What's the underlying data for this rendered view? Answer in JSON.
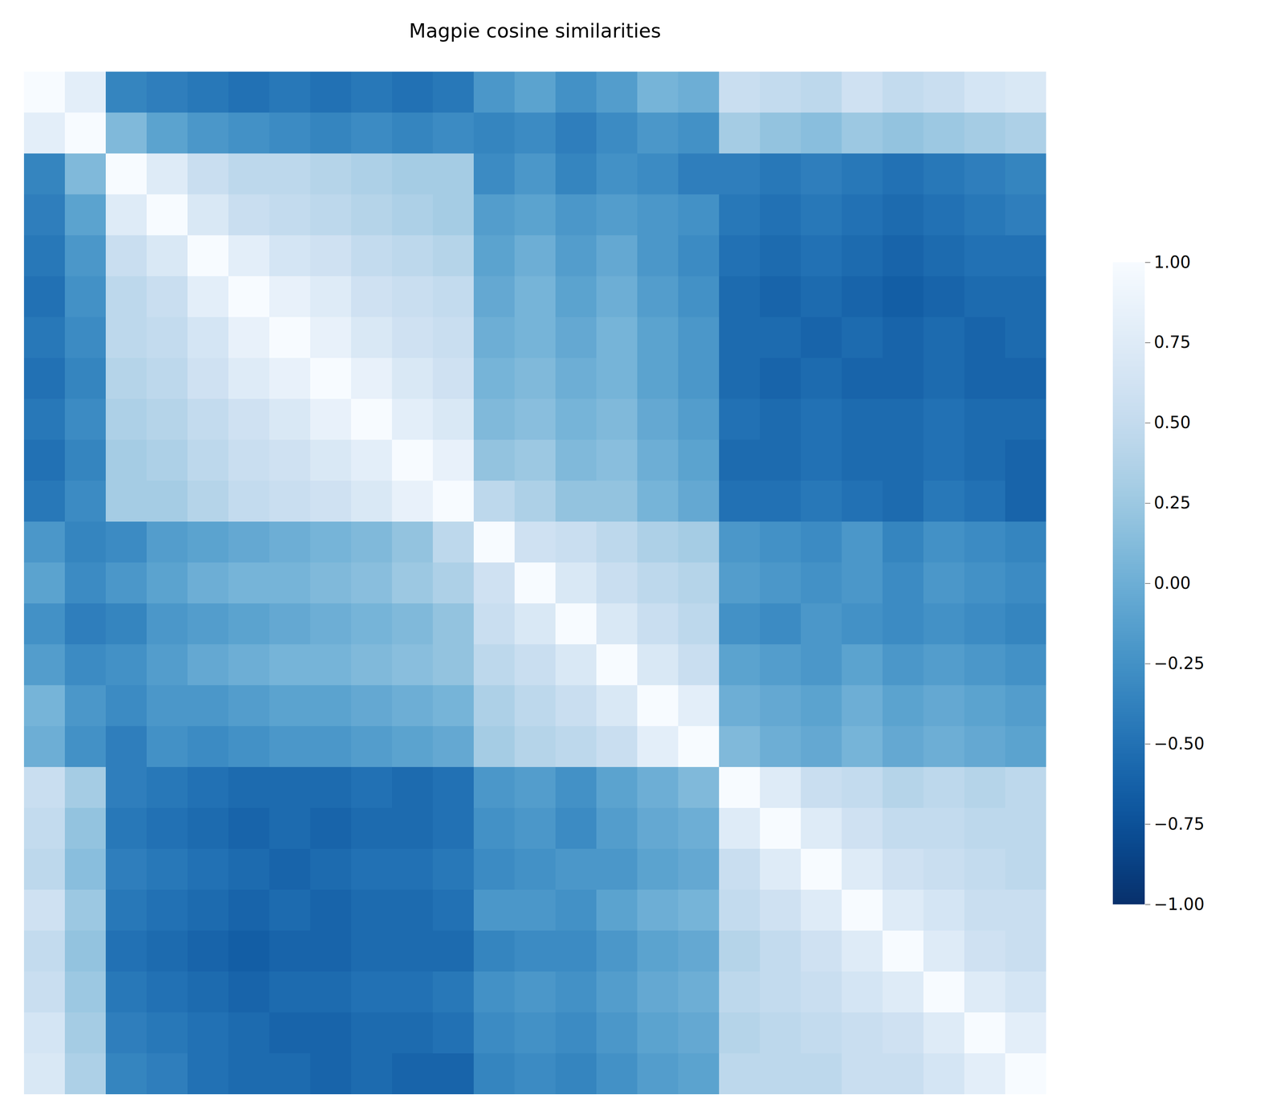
{
  "chart_data": {
    "type": "heatmap",
    "title": "Magpie cosine similarities",
    "tick_labels": false,
    "color": "Blues_r",
    "cells": [
      [
        1.0,
        0.8,
        -0.35,
        -0.4,
        -0.45,
        -0.5,
        -0.45,
        -0.5,
        -0.45,
        -0.5,
        -0.45,
        -0.2,
        -0.1,
        -0.25,
        -0.15,
        0.05,
        0.0,
        0.55,
        0.5,
        0.45,
        0.6,
        0.5,
        0.55,
        0.65,
        0.7
      ],
      [
        0.8,
        1.0,
        0.1,
        -0.1,
        -0.2,
        -0.25,
        -0.3,
        -0.35,
        -0.3,
        -0.35,
        -0.3,
        -0.35,
        -0.3,
        -0.4,
        -0.3,
        -0.2,
        -0.25,
        0.3,
        0.2,
        0.15,
        0.25,
        0.2,
        0.25,
        0.3,
        0.35
      ],
      [
        -0.35,
        0.1,
        1.0,
        0.75,
        0.55,
        0.45,
        0.45,
        0.4,
        0.35,
        0.3,
        0.3,
        -0.3,
        -0.2,
        -0.35,
        -0.25,
        -0.3,
        -0.4,
        -0.4,
        -0.45,
        -0.4,
        -0.45,
        -0.5,
        -0.45,
        -0.4,
        -0.35
      ],
      [
        -0.4,
        -0.1,
        0.75,
        1.0,
        0.7,
        0.55,
        0.5,
        0.45,
        0.4,
        0.35,
        0.3,
        -0.15,
        -0.1,
        -0.2,
        -0.15,
        -0.2,
        -0.25,
        -0.45,
        -0.5,
        -0.45,
        -0.5,
        -0.55,
        -0.5,
        -0.45,
        -0.4
      ],
      [
        -0.45,
        -0.2,
        0.55,
        0.7,
        1.0,
        0.8,
        0.65,
        0.6,
        0.5,
        0.45,
        0.4,
        -0.1,
        0.0,
        -0.15,
        -0.05,
        -0.2,
        -0.3,
        -0.5,
        -0.55,
        -0.5,
        -0.55,
        -0.6,
        -0.55,
        -0.5,
        -0.5
      ],
      [
        -0.5,
        -0.25,
        0.45,
        0.55,
        0.8,
        1.0,
        0.85,
        0.75,
        0.6,
        0.55,
        0.5,
        -0.05,
        0.05,
        -0.1,
        0.0,
        -0.15,
        -0.25,
        -0.55,
        -0.6,
        -0.55,
        -0.6,
        -0.65,
        -0.6,
        -0.55,
        -0.55
      ],
      [
        -0.45,
        -0.3,
        0.45,
        0.5,
        0.65,
        0.85,
        1.0,
        0.85,
        0.7,
        0.6,
        0.55,
        0.0,
        0.05,
        -0.05,
        0.05,
        -0.1,
        -0.2,
        -0.55,
        -0.55,
        -0.6,
        -0.55,
        -0.6,
        -0.55,
        -0.6,
        -0.55
      ],
      [
        -0.5,
        -0.35,
        0.4,
        0.45,
        0.6,
        0.75,
        0.85,
        1.0,
        0.85,
        0.7,
        0.6,
        0.05,
        0.1,
        0.0,
        0.05,
        -0.1,
        -0.2,
        -0.55,
        -0.6,
        -0.55,
        -0.6,
        -0.6,
        -0.55,
        -0.6,
        -0.6
      ],
      [
        -0.45,
        -0.3,
        0.35,
        0.4,
        0.5,
        0.6,
        0.7,
        0.85,
        1.0,
        0.8,
        0.7,
        0.1,
        0.15,
        0.05,
        0.1,
        -0.05,
        -0.15,
        -0.5,
        -0.55,
        -0.5,
        -0.55,
        -0.55,
        -0.5,
        -0.55,
        -0.55
      ],
      [
        -0.5,
        -0.35,
        0.3,
        0.35,
        0.45,
        0.55,
        0.6,
        0.7,
        0.8,
        1.0,
        0.85,
        0.2,
        0.25,
        0.1,
        0.15,
        0.0,
        -0.1,
        -0.55,
        -0.55,
        -0.5,
        -0.55,
        -0.55,
        -0.5,
        -0.55,
        -0.6
      ],
      [
        -0.45,
        -0.3,
        0.3,
        0.3,
        0.4,
        0.5,
        0.55,
        0.6,
        0.7,
        0.85,
        1.0,
        0.45,
        0.35,
        0.2,
        0.2,
        0.05,
        -0.05,
        -0.5,
        -0.5,
        -0.45,
        -0.5,
        -0.55,
        -0.45,
        -0.5,
        -0.6
      ],
      [
        -0.2,
        -0.35,
        -0.3,
        -0.15,
        -0.1,
        -0.05,
        0.0,
        0.05,
        0.1,
        0.2,
        0.45,
        1.0,
        0.6,
        0.55,
        0.45,
        0.35,
        0.3,
        -0.2,
        -0.25,
        -0.3,
        -0.2,
        -0.35,
        -0.25,
        -0.3,
        -0.35
      ],
      [
        -0.1,
        -0.3,
        -0.2,
        -0.1,
        0.0,
        0.05,
        0.05,
        0.1,
        0.15,
        0.25,
        0.35,
        0.6,
        1.0,
        0.7,
        0.55,
        0.45,
        0.4,
        -0.15,
        -0.2,
        -0.25,
        -0.2,
        -0.3,
        -0.2,
        -0.25,
        -0.3
      ],
      [
        -0.25,
        -0.4,
        -0.35,
        -0.2,
        -0.15,
        -0.1,
        -0.05,
        0.0,
        0.05,
        0.1,
        0.2,
        0.55,
        0.7,
        1.0,
        0.7,
        0.55,
        0.45,
        -0.25,
        -0.3,
        -0.2,
        -0.25,
        -0.3,
        -0.25,
        -0.3,
        -0.35
      ],
      [
        -0.15,
        -0.3,
        -0.25,
        -0.15,
        -0.05,
        0.0,
        0.05,
        0.05,
        0.1,
        0.15,
        0.2,
        0.45,
        0.55,
        0.7,
        1.0,
        0.7,
        0.55,
        -0.1,
        -0.15,
        -0.2,
        -0.1,
        -0.2,
        -0.15,
        -0.2,
        -0.25
      ],
      [
        0.05,
        -0.2,
        -0.3,
        -0.2,
        -0.2,
        -0.15,
        -0.1,
        -0.1,
        -0.05,
        0.0,
        0.05,
        0.35,
        0.45,
        0.55,
        0.7,
        1.0,
        0.8,
        0.0,
        -0.05,
        -0.1,
        0.0,
        -0.1,
        -0.05,
        -0.1,
        -0.15
      ],
      [
        0.0,
        -0.25,
        -0.4,
        -0.25,
        -0.3,
        -0.25,
        -0.2,
        -0.2,
        -0.15,
        -0.1,
        -0.05,
        0.3,
        0.4,
        0.45,
        0.55,
        0.8,
        1.0,
        0.1,
        0.0,
        -0.05,
        0.05,
        -0.05,
        0.0,
        -0.05,
        -0.1
      ],
      [
        0.55,
        0.3,
        -0.4,
        -0.45,
        -0.5,
        -0.55,
        -0.55,
        -0.55,
        -0.5,
        -0.55,
        -0.5,
        -0.2,
        -0.15,
        -0.25,
        -0.1,
        0.0,
        0.1,
        1.0,
        0.75,
        0.55,
        0.5,
        0.4,
        0.45,
        0.4,
        0.45
      ],
      [
        0.5,
        0.2,
        -0.45,
        -0.5,
        -0.55,
        -0.6,
        -0.55,
        -0.6,
        -0.55,
        -0.55,
        -0.5,
        -0.25,
        -0.2,
        -0.3,
        -0.15,
        -0.05,
        0.0,
        0.75,
        1.0,
        0.75,
        0.6,
        0.5,
        0.5,
        0.45,
        0.45
      ],
      [
        0.45,
        0.15,
        -0.4,
        -0.45,
        -0.5,
        -0.55,
        -0.6,
        -0.55,
        -0.5,
        -0.5,
        -0.45,
        -0.3,
        -0.25,
        -0.2,
        -0.2,
        -0.1,
        -0.05,
        0.55,
        0.75,
        1.0,
        0.75,
        0.6,
        0.55,
        0.5,
        0.45
      ],
      [
        0.6,
        0.25,
        -0.45,
        -0.5,
        -0.55,
        -0.6,
        -0.55,
        -0.6,
        -0.55,
        -0.55,
        -0.5,
        -0.2,
        -0.2,
        -0.25,
        -0.1,
        0.0,
        0.05,
        0.5,
        0.6,
        0.75,
        1.0,
        0.75,
        0.65,
        0.55,
        0.55
      ],
      [
        0.5,
        0.2,
        -0.5,
        -0.55,
        -0.6,
        -0.65,
        -0.6,
        -0.6,
        -0.55,
        -0.55,
        -0.55,
        -0.35,
        -0.3,
        -0.3,
        -0.2,
        -0.1,
        -0.05,
        0.4,
        0.5,
        0.6,
        0.75,
        1.0,
        0.75,
        0.6,
        0.55
      ],
      [
        0.55,
        0.25,
        -0.45,
        -0.5,
        -0.55,
        -0.6,
        -0.55,
        -0.55,
        -0.5,
        -0.5,
        -0.45,
        -0.25,
        -0.2,
        -0.25,
        -0.15,
        -0.05,
        0.0,
        0.45,
        0.5,
        0.55,
        0.65,
        0.75,
        1.0,
        0.75,
        0.65
      ],
      [
        0.65,
        0.3,
        -0.4,
        -0.45,
        -0.5,
        -0.55,
        -0.6,
        -0.6,
        -0.55,
        -0.55,
        -0.5,
        -0.3,
        -0.25,
        -0.3,
        -0.2,
        -0.1,
        -0.05,
        0.4,
        0.45,
        0.5,
        0.55,
        0.6,
        0.75,
        1.0,
        0.8
      ],
      [
        0.7,
        0.35,
        -0.35,
        -0.4,
        -0.5,
        -0.55,
        -0.55,
        -0.6,
        -0.55,
        -0.6,
        -0.6,
        -0.35,
        -0.3,
        -0.35,
        -0.25,
        -0.15,
        -0.1,
        0.45,
        0.45,
        0.45,
        0.55,
        0.55,
        0.65,
        0.8,
        1.0
      ]
    ],
    "colorbar_range": [
      -1,
      1
    ],
    "colorbar_ticks": [
      {
        "value": 1,
        "label": "1.00"
      },
      {
        "value": 0.75,
        "label": "0.75"
      },
      {
        "value": 0.5,
        "label": "0.50"
      },
      {
        "value": 0.25,
        "label": "0.25"
      },
      {
        "value": 0,
        "label": "0.00"
      },
      {
        "value": -0.25,
        "label": "−0.25"
      },
      {
        "value": -0.5,
        "label": "−0.50"
      },
      {
        "value": -0.75,
        "label": "−0.75"
      },
      {
        "value": -1,
        "label": "−1.00"
      }
    ]
  }
}
